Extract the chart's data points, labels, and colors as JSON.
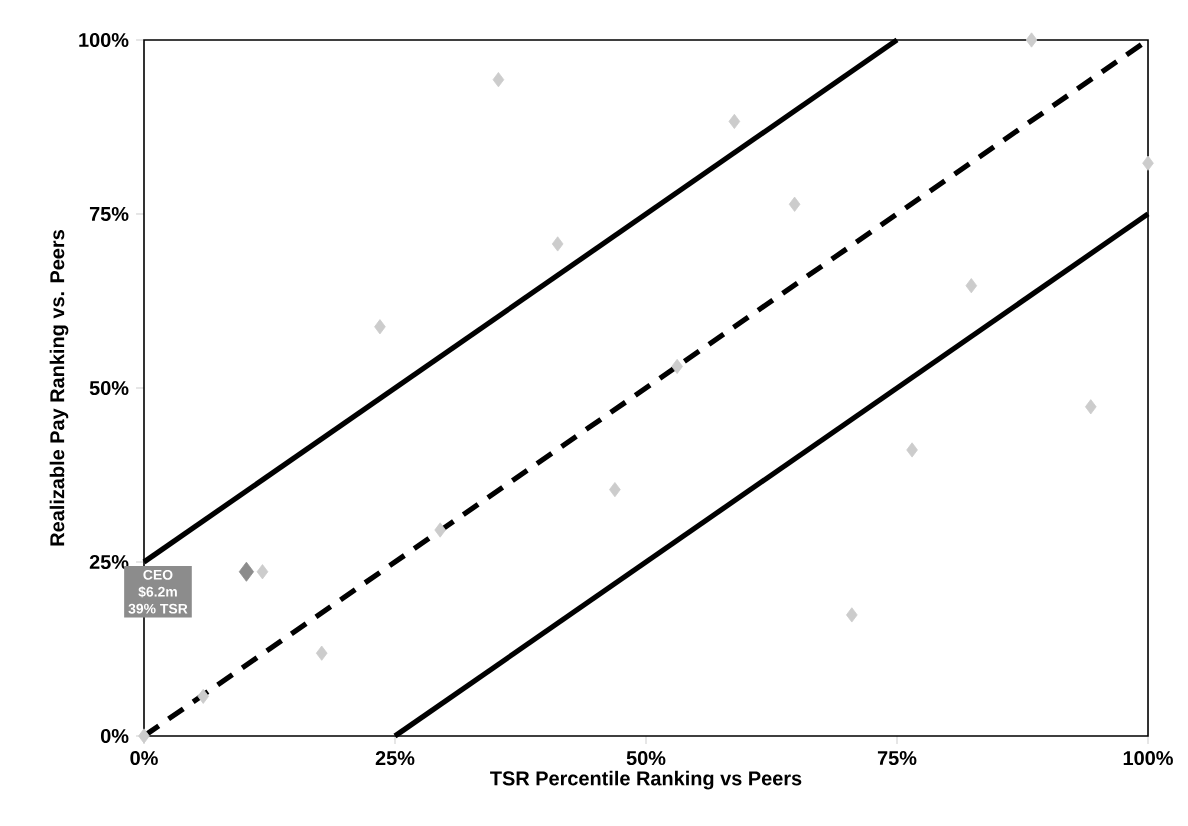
{
  "chart_data": {
    "type": "scatter",
    "xlabel": "TSR Percentile Ranking vs Peers",
    "ylabel": "Realizable Pay Ranking vs. Peers",
    "xlim": [
      0,
      100
    ],
    "ylim": [
      0,
      100
    ],
    "xticks": [
      {
        "value": 0,
        "label": "0%"
      },
      {
        "value": 25,
        "label": "25%"
      },
      {
        "value": 50,
        "label": "50%"
      },
      {
        "value": 75,
        "label": "75%"
      },
      {
        "value": 100,
        "label": "100%"
      }
    ],
    "yticks": [
      {
        "value": 0,
        "label": "0%"
      },
      {
        "value": 25,
        "label": "25%"
      },
      {
        "value": 50,
        "label": "50%"
      },
      {
        "value": 75,
        "label": "75%"
      },
      {
        "value": 100,
        "label": "100%"
      }
    ],
    "marker": "diamond",
    "series": [
      {
        "color": "#cccccc",
        "x": [
          0,
          5.9,
          17.7,
          11.8,
          23.5,
          29.5,
          35.3,
          41.2,
          46.9,
          53.1,
          58.8,
          64.8,
          70.5,
          76.5,
          82.4,
          88.4,
          94.3,
          100
        ],
        "values": [
          0,
          5.7,
          11.9,
          23.6,
          58.8,
          29.6,
          94.3,
          70.7,
          35.4,
          53.1,
          88.3,
          76.4,
          17.4,
          41.1,
          64.7,
          100,
          47.3,
          82.3
        ]
      },
      {
        "color": "#8c8c8c",
        "x": [
          10.2
        ],
        "values": [
          23.6
        ]
      },
      {
        "type": "line",
        "color": "#000000",
        "marker": "none",
        "line_style": "solid",
        "x": [
          0,
          75
        ],
        "values": [
          25,
          100
        ]
      },
      {
        "type": "line",
        "color": "#000000",
        "marker": "none",
        "line_style": "dashed",
        "x": [
          0,
          100
        ],
        "values": [
          0,
          100
        ]
      },
      {
        "type": "line",
        "color": "#000000",
        "marker": "none",
        "line_style": "solid",
        "x": [
          25,
          100
        ],
        "values": [
          0,
          75
        ]
      }
    ],
    "annotations": [
      "CEO",
      "$6.2m",
      "39% TSR"
    ]
  }
}
